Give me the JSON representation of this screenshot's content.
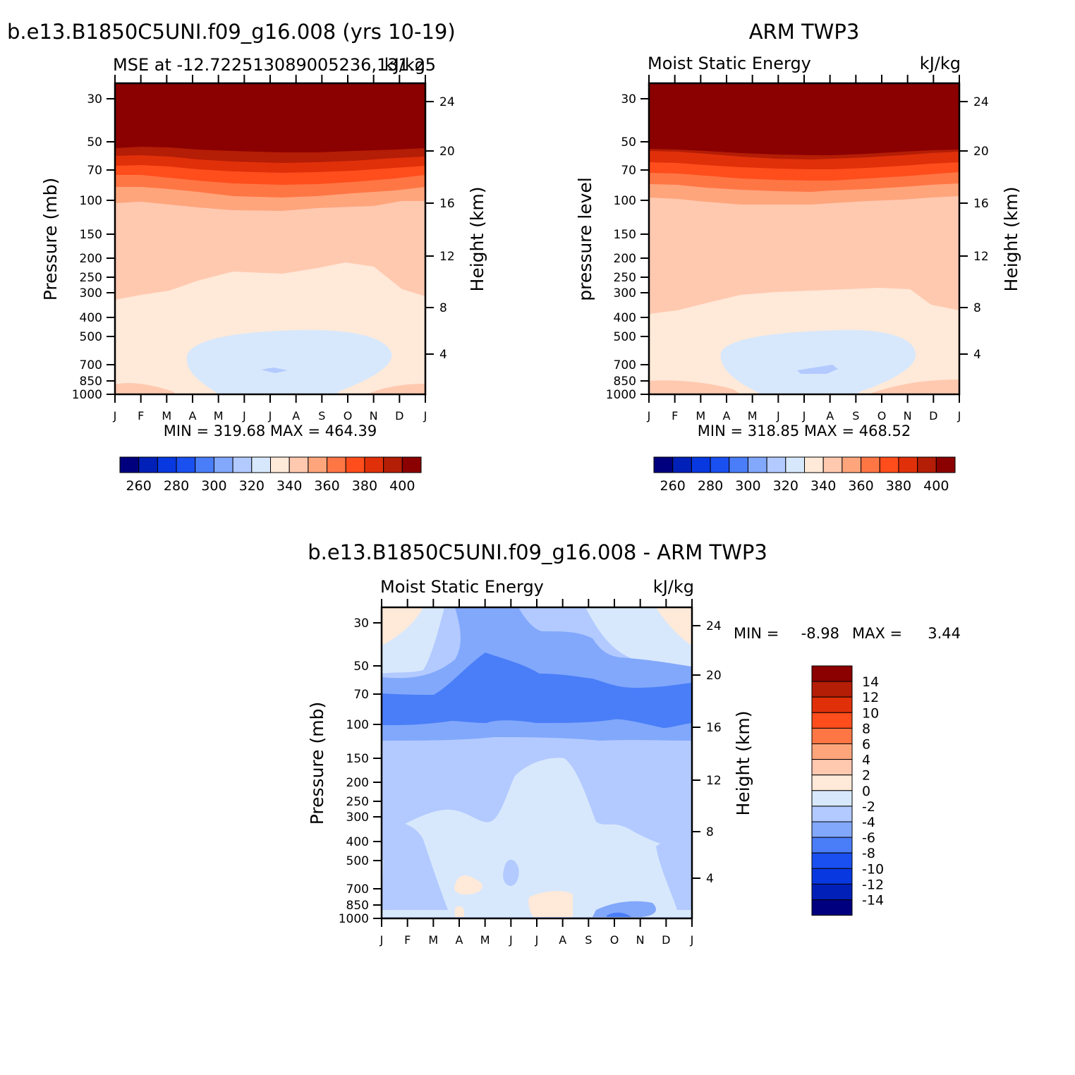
{
  "colors": {
    "mse": [
      "#00007f",
      "#0020b8",
      "#0838e0",
      "#1a50f0",
      "#4a7ef8",
      "#82a8fc",
      "#b2caff",
      "#d8e8fc",
      "#ffe9d8",
      "#ffc9b0",
      "#ffa57c",
      "#ff7645",
      "#ff4d1c",
      "#e0300a",
      "#b41d06",
      "#8b0000"
    ],
    "diff": [
      "#00007f",
      "#0020b8",
      "#0838e0",
      "#1a50f0",
      "#4a7ef8",
      "#82a8fc",
      "#b2caff",
      "#d8e8fc",
      "#ffe9d8",
      "#ffc9b0",
      "#ffa57c",
      "#ff7645",
      "#ff4d1c",
      "#e0300a",
      "#b41d06",
      "#8b0000"
    ]
  },
  "chart_data": [
    {
      "type": "heatmap",
      "title": "b.e13.B1850C5UNI.f09_g16.008 (yrs 10-19)",
      "subtitle_left": "MSE at -12.722513089005236,131.25",
      "subtitle_right": "kJ/kg",
      "ylabel": "Pressure (mb)",
      "ylabel_right": "Height (km)",
      "x_ticks": [
        "J",
        "F",
        "M",
        "A",
        "M",
        "J",
        "J",
        "A",
        "S",
        "O",
        "N",
        "D",
        "J"
      ],
      "y_ticks": [
        "30",
        "50",
        "70",
        "100",
        "150",
        "200",
        "250",
        "300",
        "400",
        "500",
        "700",
        "850",
        "1000"
      ],
      "y_ticks_right": [
        "24",
        "20",
        "16",
        "12",
        "8",
        "4"
      ],
      "stats": "MIN = 319.68 MAX = 464.39",
      "colorbar_labels": [
        "260",
        "280",
        "300",
        "320",
        "340",
        "360",
        "380",
        "400"
      ]
    },
    {
      "type": "heatmap",
      "title": "ARM TWP3",
      "subtitle_left": "Moist Static Energy",
      "subtitle_right": "kJ/kg",
      "ylabel": "pressure level",
      "ylabel_right": "Height (km)",
      "x_ticks": [
        "J",
        "F",
        "M",
        "A",
        "M",
        "J",
        "J",
        "A",
        "S",
        "O",
        "N",
        "D",
        "J"
      ],
      "y_ticks": [
        "30",
        "50",
        "70",
        "100",
        "150",
        "200",
        "250",
        "300",
        "400",
        "500",
        "700",
        "850",
        "1000"
      ],
      "y_ticks_right": [
        "24",
        "20",
        "16",
        "12",
        "8",
        "4"
      ],
      "stats": "MIN = 318.85 MAX = 468.52",
      "colorbar_labels": [
        "260",
        "280",
        "300",
        "320",
        "340",
        "360",
        "380",
        "400"
      ]
    },
    {
      "type": "heatmap",
      "title": "b.e13.B1850C5UNI.f09_g16.008 - ARM TWP3",
      "subtitle_left": "Moist Static Energy",
      "subtitle_right": "kJ/kg",
      "ylabel": "Pressure (mb)",
      "ylabel_right": "Height (km)",
      "x_ticks": [
        "J",
        "F",
        "M",
        "A",
        "M",
        "J",
        "J",
        "A",
        "S",
        "O",
        "N",
        "D",
        "J"
      ],
      "y_ticks": [
        "30",
        "50",
        "70",
        "100",
        "150",
        "200",
        "250",
        "300",
        "400",
        "500",
        "700",
        "850",
        "1000"
      ],
      "y_ticks_right": [
        "24",
        "20",
        "16",
        "12",
        "8",
        "4"
      ],
      "stats_min_label": "MIN =",
      "stats_min_value": "-8.98",
      "stats_max_label": "MAX =",
      "stats_max_value": "3.44",
      "colorbar_labels": [
        "14",
        "12",
        "10",
        "8",
        "6",
        "4",
        "2",
        "0",
        "-2",
        "-4",
        "-6",
        "-8",
        "-10",
        "-12",
        "-14"
      ]
    }
  ]
}
